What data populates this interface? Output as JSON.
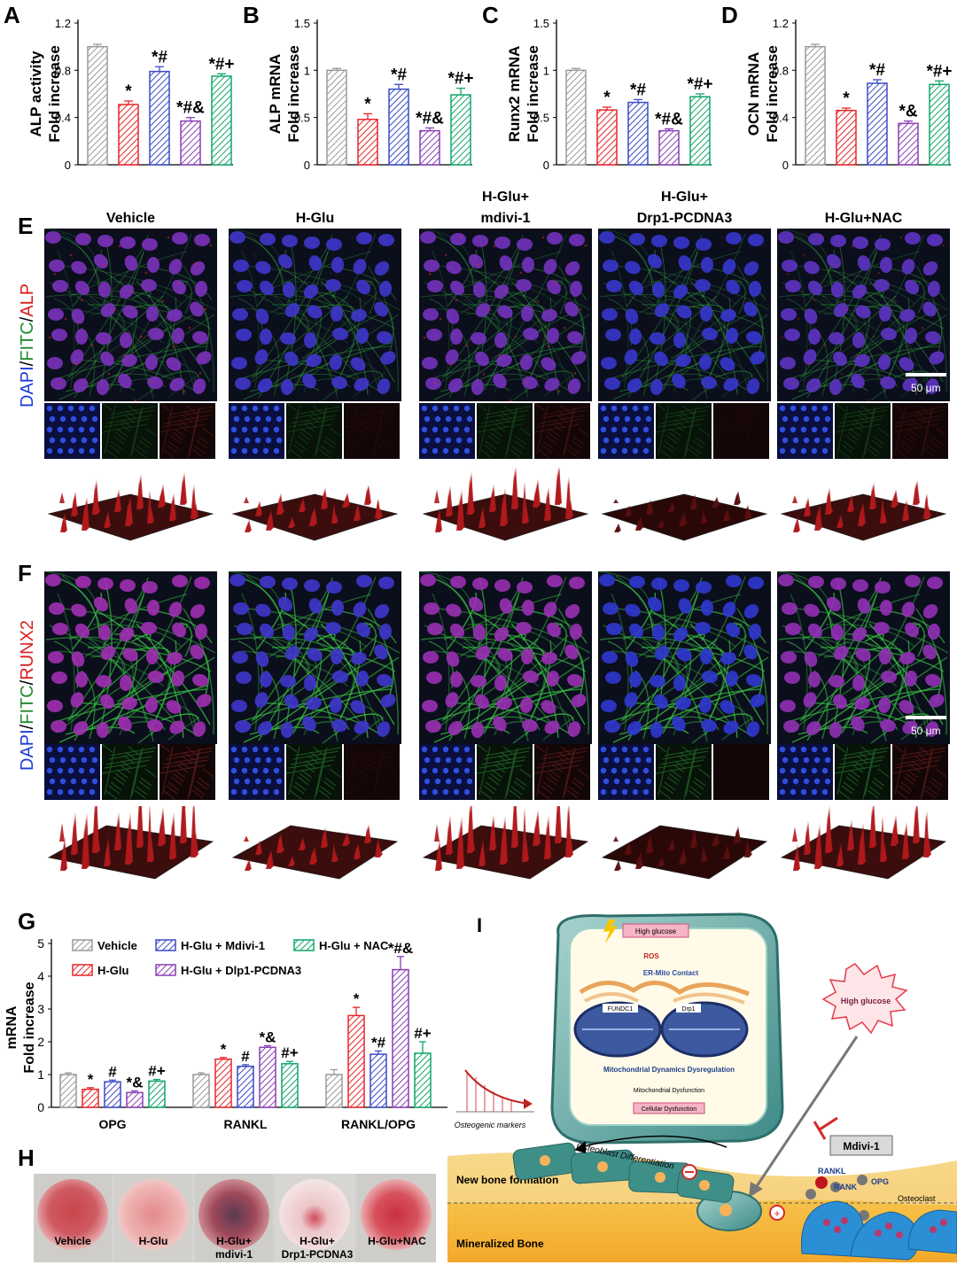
{
  "panel_letters": {
    "A": "A",
    "B": "B",
    "C": "C",
    "D": "D",
    "E": "E",
    "F": "F",
    "G": "G",
    "H": "H",
    "I": "I"
  },
  "colors": {
    "vehicle": "#9a9a9a",
    "hglu": "#e8262a",
    "mdivi": "#3b4bc8",
    "drp1": "#8a3fb5",
    "nac": "#12a56a"
  },
  "groups": [
    "Vehicle",
    "H-Glu",
    "H-Glu+\nmdivi-1",
    "H-Glu+\nDrp1-PCDNA3",
    "H-Glu+NAC"
  ],
  "group_titles": {
    "g1": "Vehicle",
    "g2": "H-Glu",
    "g3a": "H-Glu+",
    "g3b": "mdivi-1",
    "g4a": "H-Glu+",
    "g4b": "Drp1-PCDNA3",
    "g5": "H-Glu+NAC"
  },
  "stain_E": {
    "dapi": "DAPI",
    "sep1": "/",
    "fitc": "FITC",
    "sep2": "/",
    "marker": "ALP"
  },
  "stain_F": {
    "dapi": "DAPI",
    "sep1": "/",
    "fitc": "FITC",
    "sep2": "/",
    "marker": "RUNX2"
  },
  "scale_bar": "50 μm",
  "legend_G": [
    "Vehicle",
    "H-Glu",
    "H-Glu + Mdivi-1",
    "H-Glu + Dlp1-PCDNA3",
    "H-Glu + NAC"
  ],
  "dish_labels": {
    "d1": "Vehicle",
    "d2": "H-Glu",
    "d3a": "H-Glu+",
    "d3b": "mdivi-1",
    "d4a": "H-Glu+",
    "d4b": "Drp1-PCDNA3",
    "d5": "H-Glu+NAC"
  },
  "schematic": {
    "high_glucose": "High glucose",
    "ros": "ROS",
    "er_mito": "ER-Mito Contact",
    "fundc1": "FUNDC1",
    "drp1": "Drp1",
    "mdd": "Mitochondrial Dynamics Dysregulation",
    "mito_dys": "Mitochondrial Dysfunction",
    "cell_dys": "Cellular Dysfunction",
    "high_glucose2": "High glucose",
    "mdivi": "Mdivi-1",
    "osteogenic": "Osteogenic markers",
    "rankl": "RANKL",
    "opg": "OPG",
    "rank": "RANK",
    "osteoclast": "Osteoclast",
    "ob_diff": "Osteoblast Differentiation",
    "new_bone": "New bone formation",
    "min_bone": "Mineralized Bone"
  },
  "chart_data": [
    {
      "type": "bar",
      "panel": "A",
      "ylabel": "ALP activity\nFold increase",
      "ylim": [
        0,
        1.2
      ],
      "ticks": [
        "0",
        "0.4",
        "0.8",
        "1.2"
      ],
      "tickvals": [
        0,
        0.4,
        0.8,
        1.2
      ],
      "values": [
        1.0,
        0.51,
        0.79,
        0.37,
        0.75
      ],
      "errors": [
        0.02,
        0.03,
        0.04,
        0.03,
        0.02
      ],
      "annot": [
        "",
        "*",
        "*#",
        "*#&",
        "*#+"
      ]
    },
    {
      "type": "bar",
      "panel": "B",
      "ylabel": "ALP mRNA\nFold increase",
      "ylim": [
        0,
        1.5
      ],
      "ticks": [
        "0",
        "0.5",
        "1",
        "1.5"
      ],
      "tickvals": [
        0,
        0.5,
        1,
        1.5
      ],
      "values": [
        1.0,
        0.48,
        0.8,
        0.36,
        0.74
      ],
      "errors": [
        0.02,
        0.06,
        0.05,
        0.03,
        0.07
      ],
      "annot": [
        "",
        "*",
        "*#",
        "*#&",
        "*#+"
      ]
    },
    {
      "type": "bar",
      "panel": "C",
      "ylabel": "Runx2 mRNA\nFold increase",
      "ylim": [
        0,
        1.5
      ],
      "ticks": [
        "0",
        "0.5",
        "1",
        "1.5"
      ],
      "tickvals": [
        0,
        0.5,
        1,
        1.5
      ],
      "values": [
        1.0,
        0.58,
        0.66,
        0.36,
        0.72
      ],
      "errors": [
        0.02,
        0.03,
        0.03,
        0.02,
        0.03
      ],
      "annot": [
        "",
        "*",
        "*#",
        "*#&",
        "*#+"
      ]
    },
    {
      "type": "bar",
      "panel": "D",
      "ylabel": "OCN mRNA\nFold increase",
      "ylim": [
        0,
        1.2
      ],
      "ticks": [
        "0",
        "0.4",
        "0.8",
        "1.2"
      ],
      "tickvals": [
        0,
        0.4,
        0.8,
        1.2
      ],
      "values": [
        1.0,
        0.46,
        0.69,
        0.35,
        0.68
      ],
      "errors": [
        0.02,
        0.02,
        0.03,
        0.02,
        0.03
      ],
      "annot": [
        "",
        "*",
        "*#",
        "*&",
        "*#+"
      ]
    },
    {
      "type": "bar",
      "panel": "G",
      "ylabel": "mRNA\nFold increase",
      "ylim": [
        0,
        5
      ],
      "ticks": [
        "0",
        "1",
        "2",
        "3",
        "4",
        "5"
      ],
      "tickvals": [
        0,
        1,
        2,
        3,
        4,
        5
      ],
      "categories": [
        "OPG",
        "RANKL",
        "RANKL/OPG"
      ],
      "series": [
        {
          "name": "Vehicle",
          "values": [
            1.0,
            1.0,
            1.0
          ],
          "errors": [
            0.05,
            0.05,
            0.15
          ]
        },
        {
          "name": "H-Glu",
          "values": [
            0.55,
            1.47,
            2.8
          ],
          "errors": [
            0.05,
            0.05,
            0.25
          ]
        },
        {
          "name": "H-Glu + Mdivi-1",
          "values": [
            0.78,
            1.25,
            1.62
          ],
          "errors": [
            0.05,
            0.05,
            0.1
          ]
        },
        {
          "name": "H-Glu + Dlp1-PCDNA3",
          "values": [
            0.45,
            1.83,
            4.2
          ],
          "errors": [
            0.05,
            0.05,
            0.4
          ]
        },
        {
          "name": "H-Glu + NAC",
          "values": [
            0.8,
            1.33,
            1.65
          ],
          "errors": [
            0.05,
            0.07,
            0.35
          ]
        }
      ],
      "annot": [
        [
          "",
          "*",
          "#",
          "*&",
          "#+"
        ],
        [
          "",
          "*",
          "#",
          "*&",
          "#+"
        ],
        [
          "",
          "*",
          "*#",
          "*#&",
          "#+"
        ]
      ]
    }
  ]
}
